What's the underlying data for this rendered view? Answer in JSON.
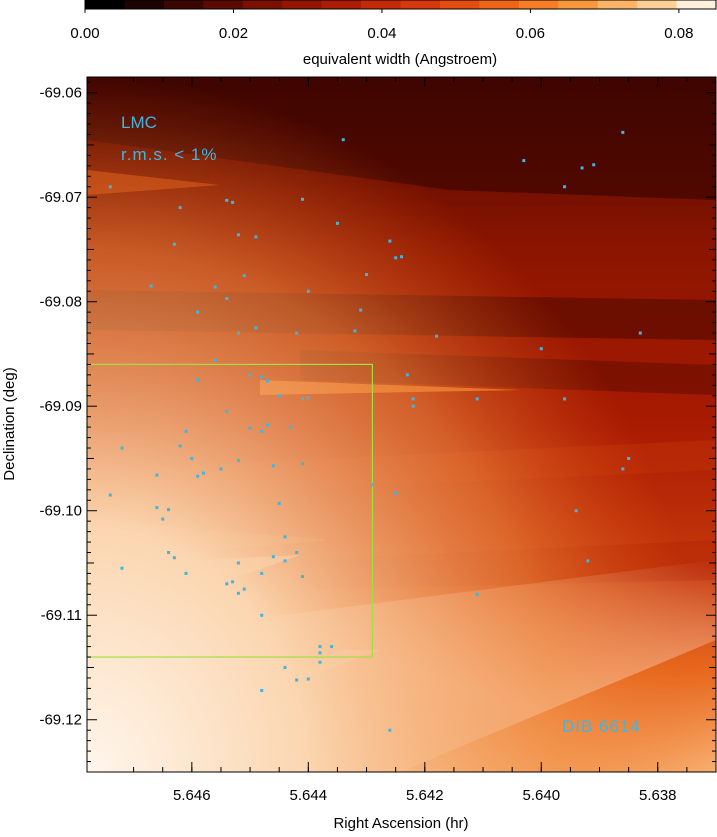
{
  "chart_data": {
    "type": "heatmap",
    "colorbar": {
      "label": "equivalent width (Angstroem)",
      "range": [
        0.0,
        0.085
      ],
      "ticks": [
        0.0,
        0.02,
        0.04,
        0.06,
        0.08
      ],
      "tick_labels": [
        "0.00",
        "0.02",
        "0.04",
        "0.06",
        "0.08"
      ],
      "colors": [
        "#000000",
        "#1c0200",
        "#3a0600",
        "#5a0a00",
        "#7a1000",
        "#951600",
        "#ad1c04",
        "#c22a08",
        "#d6380c",
        "#e54c10",
        "#f06418",
        "#f77e26",
        "#fb983e",
        "#fdb466",
        "#fed096",
        "#fff0dc"
      ]
    },
    "xlabel": "Right Ascension (hr)",
    "ylabel": "Declination (deg)",
    "xlim": [
      5.6478,
      5.637
    ],
    "ylim": [
      -69.125,
      -69.0585
    ],
    "x_ticks": [
      5.646,
      5.644,
      5.642,
      5.64,
      5.638
    ],
    "x_tick_labels": [
      "5.646",
      "5.644",
      "5.642",
      "5.640",
      "5.638"
    ],
    "y_ticks": [
      -69.06,
      -69.07,
      -69.08,
      -69.09,
      -69.1,
      -69.11,
      -69.12
    ],
    "y_tick_labels": [
      "-69.06",
      "-69.07",
      "-69.08",
      "-69.09",
      "-69.10",
      "-69.11",
      "-69.12"
    ],
    "annotations": [
      "LMC",
      "r.m.s. < 1%",
      "DIB 6614"
    ],
    "highlight_box": {
      "x": [
        5.6478,
        5.6429
      ],
      "y": [
        -69.114,
        -69.086
      ],
      "color": "#a0e040"
    },
    "stars_color": "#3fb6e0",
    "stars": [
      [
        5.6434,
        -69.0645
      ],
      [
        5.6386,
        -69.0638
      ],
      [
        5.6391,
        -69.0669
      ],
      [
        5.6393,
        -69.0672
      ],
      [
        5.6403,
        -69.0665
      ],
      [
        5.6396,
        -69.069
      ],
      [
        5.6474,
        -69.069
      ],
      [
        5.6462,
        -69.071
      ],
      [
        5.6454,
        -69.0703
      ],
      [
        5.6453,
        -69.0705
      ],
      [
        5.6441,
        -69.0702
      ],
      [
        5.6463,
        -69.0745
      ],
      [
        5.6452,
        -69.0736
      ],
      [
        5.6449,
        -69.0738
      ],
      [
        5.6435,
        -69.0725
      ],
      [
        5.6426,
        -69.0742
      ],
      [
        5.6451,
        -69.0775
      ],
      [
        5.6425,
        -69.0758
      ],
      [
        5.6424,
        -69.0757
      ],
      [
        5.643,
        -69.0774
      ],
      [
        5.6467,
        -69.0785
      ],
      [
        5.6456,
        -69.0786
      ],
      [
        5.6454,
        -69.0797
      ],
      [
        5.6459,
        -69.081
      ],
      [
        5.644,
        -69.079
      ],
      [
        5.6431,
        -69.0808
      ],
      [
        5.6449,
        -69.0825
      ],
      [
        5.6452,
        -69.083
      ],
      [
        5.6442,
        -69.083
      ],
      [
        5.6432,
        -69.0828
      ],
      [
        5.6418,
        -69.0833
      ],
      [
        5.64,
        -69.0845
      ],
      [
        5.6383,
        -69.083
      ],
      [
        5.6456,
        -69.0856
      ],
      [
        5.6459,
        -69.0875
      ],
      [
        5.645,
        -69.087
      ],
      [
        5.6448,
        -69.0872
      ],
      [
        5.6447,
        -69.0876
      ],
      [
        5.6445,
        -69.089
      ],
      [
        5.6441,
        -69.0893
      ],
      [
        5.644,
        -69.0892
      ],
      [
        5.6423,
        -69.087
      ],
      [
        5.6422,
        -69.0893
      ],
      [
        5.6422,
        -69.09
      ],
      [
        5.6411,
        -69.0893
      ],
      [
        5.6396,
        -69.0893
      ],
      [
        5.6454,
        -69.0905
      ],
      [
        5.6447,
        -69.0918
      ],
      [
        5.6443,
        -69.092
      ],
      [
        5.6461,
        -69.0924
      ],
      [
        5.645,
        -69.0921
      ],
      [
        5.6448,
        -69.0924
      ],
      [
        5.6472,
        -69.094
      ],
      [
        5.6462,
        -69.0938
      ],
      [
        5.646,
        -69.095
      ],
      [
        5.6452,
        -69.0952
      ],
      [
        5.6446,
        -69.0957
      ],
      [
        5.6441,
        -69.0955
      ],
      [
        5.6455,
        -69.096
      ],
      [
        5.6458,
        -69.0964
      ],
      [
        5.6459,
        -69.0967
      ],
      [
        5.6466,
        -69.0966
      ],
      [
        5.6429,
        -69.0975
      ],
      [
        5.6425,
        -69.0983
      ],
      [
        5.6385,
        -69.095
      ],
      [
        5.6386,
        -69.096
      ],
      [
        5.6474,
        -69.0985
      ],
      [
        5.6466,
        -69.0997
      ],
      [
        5.6464,
        -69.0999
      ],
      [
        5.6465,
        -69.1008
      ],
      [
        5.6445,
        -69.0993
      ],
      [
        5.6394,
        -69.1
      ],
      [
        5.6444,
        -69.1025
      ],
      [
        5.6442,
        -69.104
      ],
      [
        5.6444,
        -69.1048
      ],
      [
        5.6446,
        -69.1044
      ],
      [
        5.6464,
        -69.104
      ],
      [
        5.6463,
        -69.1045
      ],
      [
        5.6472,
        -69.1055
      ],
      [
        5.6461,
        -69.106
      ],
      [
        5.6452,
        -69.105
      ],
      [
        5.6448,
        -69.106
      ],
      [
        5.6441,
        -69.1063
      ],
      [
        5.6453,
        -69.1068
      ],
      [
        5.6454,
        -69.107
      ],
      [
        5.6451,
        -69.1075
      ],
      [
        5.6452,
        -69.1079
      ],
      [
        5.6411,
        -69.108
      ],
      [
        5.6392,
        -69.1048
      ],
      [
        5.6448,
        -69.11
      ],
      [
        5.6438,
        -69.113
      ],
      [
        5.6436,
        -69.113
      ],
      [
        5.6438,
        -69.1136
      ],
      [
        5.6444,
        -69.115
      ],
      [
        5.644,
        -69.1161
      ],
      [
        5.6442,
        -69.1162
      ],
      [
        5.6448,
        -69.1172
      ],
      [
        5.6438,
        -69.1145
      ],
      [
        5.6426,
        -69.121
      ]
    ]
  }
}
